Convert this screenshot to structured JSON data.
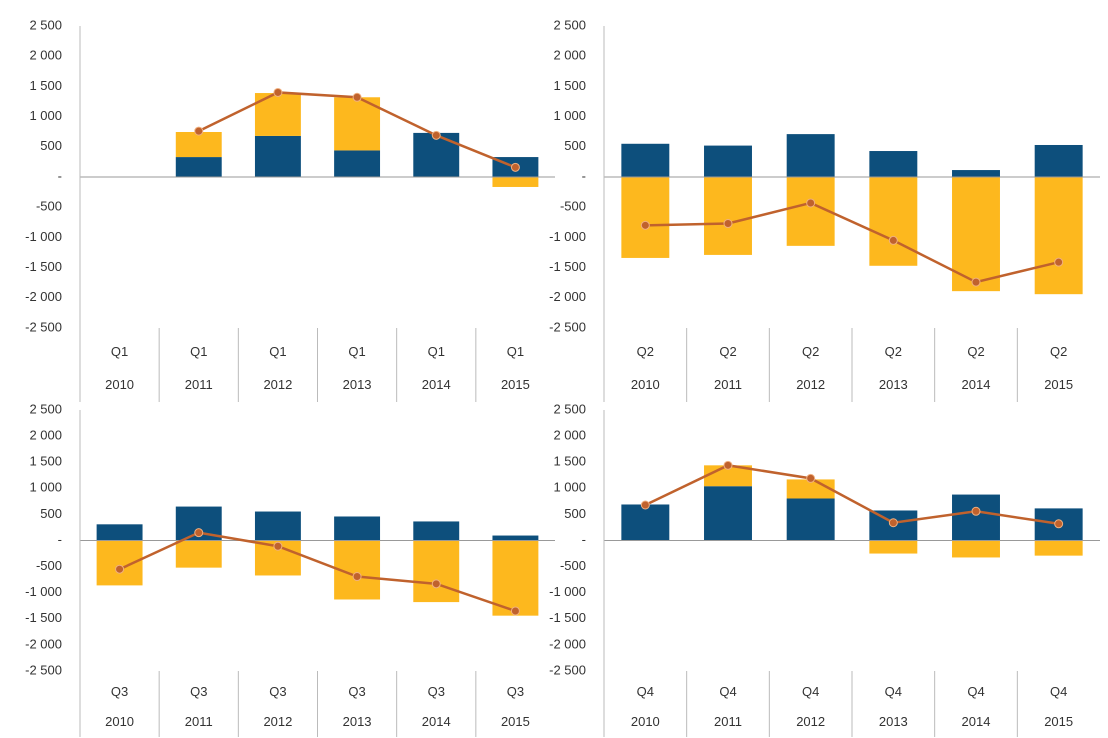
{
  "chart_data": [
    {
      "type": "bar",
      "categories": [
        [
          "Q1",
          "2010"
        ],
        [
          "Q1",
          "2011"
        ],
        [
          "Q1",
          "2012"
        ],
        [
          "Q1",
          "2013"
        ],
        [
          "Q1",
          "2014"
        ],
        [
          "Q1",
          "2015"
        ]
      ],
      "series": [
        {
          "color": "#0d4f7c",
          "values": [
            null,
            330,
            680,
            440,
            730,
            330
          ]
        },
        {
          "color": "#fdb81e",
          "values": [
            null,
            415,
            710,
            880,
            0,
            -165
          ]
        },
        {
          "type": "line",
          "color": "#c0622d",
          "values": [
            null,
            760,
            1400,
            1320,
            690,
            160
          ]
        }
      ],
      "ylim": [
        -2500,
        2500
      ],
      "yticks": [
        {
          "value": -2500,
          "label": "-2 500"
        },
        {
          "value": -2000,
          "label": "-2 000"
        },
        {
          "value": -1500,
          "label": "-1 500"
        },
        {
          "value": -1000,
          "label": "-1 000"
        },
        -500,
        {
          "value": 0,
          "label": "-"
        },
        500,
        {
          "value": 1000,
          "label": "1 000"
        },
        {
          "value": 1500,
          "label": "1 500"
        },
        {
          "value": 2000,
          "label": "2 000"
        },
        {
          "value": 2500,
          "label": "2 500"
        }
      ]
    },
    {
      "type": "bar",
      "categories": [
        [
          "Q2",
          "2010"
        ],
        [
          "Q2",
          "2011"
        ],
        [
          "Q2",
          "2012"
        ],
        [
          "Q2",
          "2013"
        ],
        [
          "Q2",
          "2014"
        ],
        [
          "Q2",
          "2015"
        ]
      ],
      "series": [
        {
          "color": "#0d4f7c",
          "values": [
            550,
            520,
            710,
            430,
            115,
            530
          ]
        },
        {
          "color": "#fdb81e",
          "values": [
            -1340,
            -1290,
            -1140,
            -1470,
            -1890,
            -1940
          ]
        },
        {
          "type": "line",
          "color": "#c0622d",
          "values": [
            -800,
            -770,
            -430,
            -1050,
            -1740,
            -1410
          ]
        }
      ],
      "ylim": [
        -2500,
        2500
      ],
      "yticks": [
        {
          "value": -2500,
          "label": "-2 500"
        },
        {
          "value": -2000,
          "label": "-2 000"
        },
        {
          "value": -1500,
          "label": "-1 500"
        },
        {
          "value": -1000,
          "label": "-1 000"
        },
        -500,
        {
          "value": 0,
          "label": "-"
        },
        500,
        {
          "value": 1000,
          "label": "1 000"
        },
        {
          "value": 1500,
          "label": "1 500"
        },
        {
          "value": 2000,
          "label": "2 000"
        },
        {
          "value": 2500,
          "label": "2 500"
        }
      ]
    },
    {
      "type": "bar",
      "categories": [
        [
          "Q3",
          "2010"
        ],
        [
          "Q3",
          "2011"
        ],
        [
          "Q3",
          "2012"
        ],
        [
          "Q3",
          "2013"
        ],
        [
          "Q3",
          "2014"
        ],
        [
          "Q3",
          "2015"
        ]
      ],
      "series": [
        {
          "color": "#0d4f7c",
          "values": [
            310,
            650,
            555,
            460,
            365,
            95
          ]
        },
        {
          "color": "#fdb81e",
          "values": [
            -860,
            -520,
            -670,
            -1130,
            -1180,
            -1440
          ]
        },
        {
          "type": "line",
          "color": "#c0622d",
          "values": [
            -550,
            150,
            -110,
            -690,
            -830,
            -1350
          ]
        }
      ],
      "ylim": [
        -2500,
        2500
      ],
      "yticks": [
        {
          "value": -2500,
          "label": "-2 500"
        },
        {
          "value": -2000,
          "label": "-2 000"
        },
        {
          "value": -1500,
          "label": "-1 500"
        },
        {
          "value": -1000,
          "label": "-1 000"
        },
        -500,
        {
          "value": 0,
          "label": "-"
        },
        500,
        {
          "value": 1000,
          "label": "1 000"
        },
        {
          "value": 1500,
          "label": "1 500"
        },
        {
          "value": 2000,
          "label": "2 000"
        },
        {
          "value": 2500,
          "label": "2 500"
        }
      ]
    },
    {
      "type": "bar",
      "categories": [
        [
          "Q4",
          "2010"
        ],
        [
          "Q4",
          "2011"
        ],
        [
          "Q4",
          "2012"
        ],
        [
          "Q4",
          "2013"
        ],
        [
          "Q4",
          "2014"
        ],
        [
          "Q4",
          "2015"
        ]
      ],
      "series": [
        {
          "color": "#0d4f7c",
          "values": [
            690,
            1040,
            805,
            575,
            880,
            615
          ]
        },
        {
          "color": "#fdb81e",
          "values": [
            0,
            400,
            365,
            -250,
            -325,
            -290
          ]
        },
        {
          "type": "line",
          "color": "#c0622d",
          "values": [
            680,
            1440,
            1190,
            340,
            560,
            320
          ]
        }
      ],
      "ylim": [
        -2500,
        2500
      ],
      "yticks": [
        {
          "value": -2500,
          "label": "-2 500"
        },
        {
          "value": -2000,
          "label": "-2 000"
        },
        {
          "value": -1500,
          "label": "-1 500"
        },
        {
          "value": -1000,
          "label": "-1 000"
        },
        -500,
        {
          "value": 0,
          "label": "-"
        },
        500,
        {
          "value": 1000,
          "label": "1 000"
        },
        {
          "value": 1500,
          "label": "1 500"
        },
        {
          "value": 2000,
          "label": "2 000"
        },
        {
          "value": 2500,
          "label": "2 500"
        }
      ]
    }
  ]
}
